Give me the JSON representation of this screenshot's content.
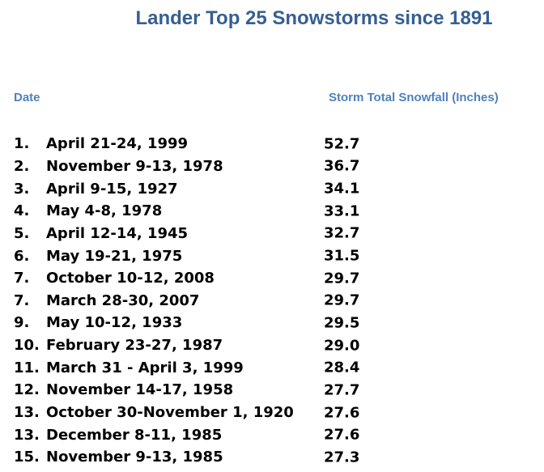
{
  "page": {
    "title": "Lander Top 25 Snowstorms since 1891",
    "colors": {
      "title_blue": "#365F91",
      "header_blue": "#4F81BD",
      "body_text": "#000000",
      "background": "#FFFFFF"
    },
    "columns": {
      "date": "Date",
      "snowfall": "Storm Total Snowfall (Inches)"
    },
    "rows": [
      {
        "rank": "1.",
        "date": "April 21-24, 1999",
        "value": "52.7"
      },
      {
        "rank": "2.",
        "date": "November 9-13, 1978",
        "value": "36.7"
      },
      {
        "rank": "3.",
        "date": "April 9-15, 1927",
        "value": "34.1"
      },
      {
        "rank": "4.",
        "date": "May 4-8, 1978",
        "value": "33.1"
      },
      {
        "rank": "5.",
        "date": "April 12-14, 1945",
        "value": "32.7"
      },
      {
        "rank": "6.",
        "date": "May 19-21, 1975",
        "value": "31.5"
      },
      {
        "rank": "7.",
        "date": "October 10-12, 2008",
        "value": "29.7"
      },
      {
        "rank": "7.",
        "date": "March 28-30, 2007",
        "value": "29.7"
      },
      {
        "rank": "9.",
        "date": "May 10-12, 1933",
        "value": "29.5"
      },
      {
        "rank": "10.",
        "date": "February 23-27, 1987",
        "value": "29.0"
      },
      {
        "rank": "11.",
        "date": "March 31 - April 3, 1999",
        "value": "28.4"
      },
      {
        "rank": "12.",
        "date": "November 14-17, 1958",
        "value": "27.7"
      },
      {
        "rank": "13.",
        "date": "October 30-November 1, 1920",
        "value": "27.6"
      },
      {
        "rank": "13.",
        "date": "December 8-11, 1985",
        "value": "27.6"
      },
      {
        "rank": "15.",
        "date": "November 9-13, 1985",
        "value": "27.3"
      }
    ]
  }
}
